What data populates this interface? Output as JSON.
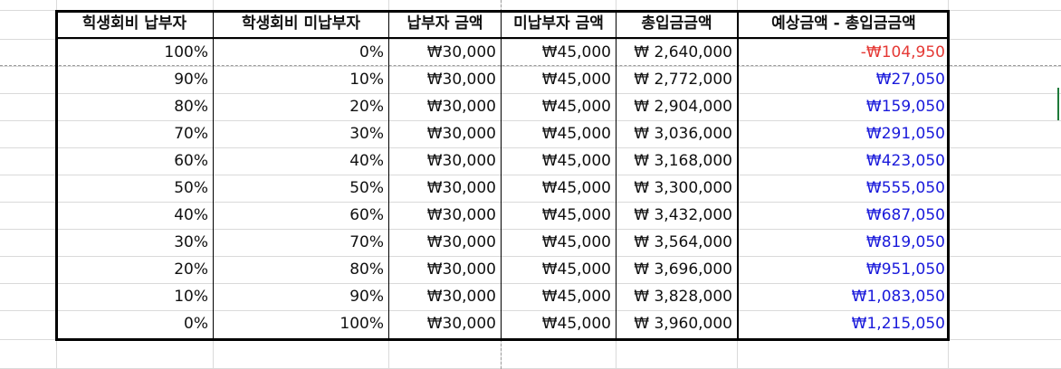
{
  "headers": [
    "힉생회비 납부자",
    "학생회비 미납부자",
    "납부자 금액",
    "미납부자 금액",
    "총입금금액",
    "예상금액 - 총입금금액"
  ],
  "rows": [
    {
      "paid": "100%",
      "unpaid": "0%",
      "paid_amt": "₩30,000",
      "unpaid_amt": "₩45,000",
      "total": "₩ 2,640,000",
      "diff": "-₩104,950",
      "neg": true
    },
    {
      "paid": "90%",
      "unpaid": "10%",
      "paid_amt": "₩30,000",
      "unpaid_amt": "₩45,000",
      "total": "₩ 2,772,000",
      "diff": "₩27,050",
      "neg": false
    },
    {
      "paid": "80%",
      "unpaid": "20%",
      "paid_amt": "₩30,000",
      "unpaid_amt": "₩45,000",
      "total": "₩ 2,904,000",
      "diff": "₩159,050",
      "neg": false
    },
    {
      "paid": "70%",
      "unpaid": "30%",
      "paid_amt": "₩30,000",
      "unpaid_amt": "₩45,000",
      "total": "₩ 3,036,000",
      "diff": "₩291,050",
      "neg": false
    },
    {
      "paid": "60%",
      "unpaid": "40%",
      "paid_amt": "₩30,000",
      "unpaid_amt": "₩45,000",
      "total": "₩ 3,168,000",
      "diff": "₩423,050",
      "neg": false
    },
    {
      "paid": "50%",
      "unpaid": "50%",
      "paid_amt": "₩30,000",
      "unpaid_amt": "₩45,000",
      "total": "₩ 3,300,000",
      "diff": "₩555,050",
      "neg": false
    },
    {
      "paid": "40%",
      "unpaid": "60%",
      "paid_amt": "₩30,000",
      "unpaid_amt": "₩45,000",
      "total": "₩ 3,432,000",
      "diff": "₩687,050",
      "neg": false
    },
    {
      "paid": "30%",
      "unpaid": "70%",
      "paid_amt": "₩30,000",
      "unpaid_amt": "₩45,000",
      "total": "₩ 3,564,000",
      "diff": "₩819,050",
      "neg": false
    },
    {
      "paid": "20%",
      "unpaid": "80%",
      "paid_amt": "₩30,000",
      "unpaid_amt": "₩45,000",
      "total": "₩ 3,696,000",
      "diff": "₩951,050",
      "neg": false
    },
    {
      "paid": "10%",
      "unpaid": "90%",
      "paid_amt": "₩30,000",
      "unpaid_amt": "₩45,000",
      "total": "₩ 3,828,000",
      "diff": "₩1,083,050",
      "neg": false
    },
    {
      "paid": "0%",
      "unpaid": "100%",
      "paid_amt": "₩30,000",
      "unpaid_amt": "₩45,000",
      "total": "₩ 3,960,000",
      "diff": "₩1,215,050",
      "neg": false
    }
  ],
  "colors": {
    "negative": "#e53935",
    "positive": "#1a1adb",
    "gridline": "#dadada",
    "border": "#000000",
    "selection": "#1e7a3a"
  }
}
